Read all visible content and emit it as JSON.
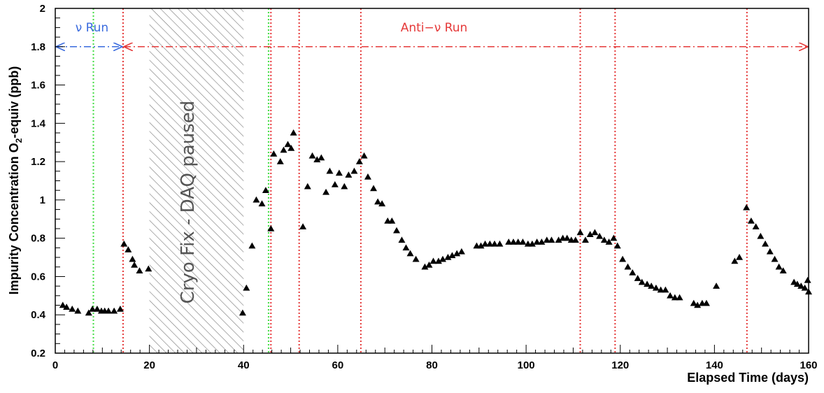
{
  "chart_data": {
    "type": "scatter",
    "xlabel": "Elapsed Time (days)",
    "ylabel_main": "Impurity Concentration O",
    "ylabel_sub": "2",
    "ylabel_tail": "-equiv (ppb)",
    "xlim": [
      0,
      160
    ],
    "ylim": [
      0.2,
      2
    ],
    "x_ticks": [
      0,
      20,
      40,
      60,
      80,
      100,
      120,
      140,
      160
    ],
    "x_tick_labels": [
      "0",
      "20",
      "40",
      "60",
      "80",
      "100",
      "120",
      "140",
      "160"
    ],
    "y_ticks": [
      0.2,
      0.4,
      0.6,
      0.8,
      1.0,
      1.2,
      1.4,
      1.6,
      1.8,
      2.0
    ],
    "y_tick_labels": [
      "0.2",
      "0.4",
      "0.6",
      "0.8",
      "1",
      "1.2",
      "1.4",
      "1.6",
      "1.8",
      "2"
    ],
    "grid": false,
    "marker": "triangle",
    "marker_color": "#000000",
    "points": [
      [
        1.6,
        0.45
      ],
      [
        2.4,
        0.44
      ],
      [
        3.6,
        0.43
      ],
      [
        4.8,
        0.42
      ],
      [
        7.1,
        0.41
      ],
      [
        7.9,
        0.43
      ],
      [
        8.9,
        0.43
      ],
      [
        9.8,
        0.42
      ],
      [
        10.5,
        0.42
      ],
      [
        11.3,
        0.42
      ],
      [
        12.5,
        0.42
      ],
      [
        13.8,
        0.43
      ],
      [
        14.6,
        0.77
      ],
      [
        15.5,
        0.74
      ],
      [
        16.4,
        0.69
      ],
      [
        16.8,
        0.66
      ],
      [
        17.9,
        0.63
      ],
      [
        19.8,
        0.64
      ],
      [
        39.8,
        0.41
      ],
      [
        40.6,
        0.54
      ],
      [
        41.8,
        0.76
      ],
      [
        42.7,
        1.0
      ],
      [
        43.9,
        0.98
      ],
      [
        44.7,
        1.05
      ],
      [
        45.8,
        0.85
      ],
      [
        46.4,
        1.24
      ],
      [
        47.8,
        1.2
      ],
      [
        48.5,
        1.26
      ],
      [
        49.4,
        1.29
      ],
      [
        50.1,
        1.27
      ],
      [
        50.6,
        1.35
      ],
      [
        52.6,
        0.86
      ],
      [
        53.6,
        1.07
      ],
      [
        54.6,
        1.23
      ],
      [
        55.6,
        1.21
      ],
      [
        56.5,
        1.22
      ],
      [
        57.5,
        1.04
      ],
      [
        58.3,
        1.15
      ],
      [
        59.4,
        1.08
      ],
      [
        60.3,
        1.14
      ],
      [
        61.4,
        1.07
      ],
      [
        62.3,
        1.13
      ],
      [
        63.5,
        1.15
      ],
      [
        64.6,
        1.2
      ],
      [
        65.6,
        1.23
      ],
      [
        66.4,
        1.12
      ],
      [
        67.6,
        1.06
      ],
      [
        68.5,
        0.99
      ],
      [
        69.4,
        0.98
      ],
      [
        70.6,
        0.89
      ],
      [
        71.5,
        0.89
      ],
      [
        72.5,
        0.84
      ],
      [
        73.6,
        0.79
      ],
      [
        74.5,
        0.75
      ],
      [
        75.4,
        0.72
      ],
      [
        76.6,
        0.69
      ],
      [
        78.5,
        0.65
      ],
      [
        79.4,
        0.66
      ],
      [
        80.3,
        0.68
      ],
      [
        81.4,
        0.68
      ],
      [
        82.3,
        0.69
      ],
      [
        83.4,
        0.7
      ],
      [
        84.3,
        0.71
      ],
      [
        85.3,
        0.72
      ],
      [
        86.3,
        0.73
      ],
      [
        89.5,
        0.76
      ],
      [
        90.4,
        0.76
      ],
      [
        91.3,
        0.77
      ],
      [
        92.3,
        0.77
      ],
      [
        93.3,
        0.77
      ],
      [
        94.4,
        0.77
      ],
      [
        96.3,
        0.78
      ],
      [
        97.3,
        0.78
      ],
      [
        98.3,
        0.78
      ],
      [
        99.3,
        0.78
      ],
      [
        100.4,
        0.77
      ],
      [
        101.3,
        0.77
      ],
      [
        102.3,
        0.78
      ],
      [
        103.3,
        0.78
      ],
      [
        104.4,
        0.79
      ],
      [
        105.4,
        0.79
      ],
      [
        106.9,
        0.79
      ],
      [
        107.8,
        0.8
      ],
      [
        108.7,
        0.8
      ],
      [
        109.6,
        0.79
      ],
      [
        110.5,
        0.79
      ],
      [
        111.5,
        0.83
      ],
      [
        112.6,
        0.79
      ],
      [
        113.6,
        0.82
      ],
      [
        114.6,
        0.83
      ],
      [
        115.6,
        0.81
      ],
      [
        116.6,
        0.79
      ],
      [
        117.6,
        0.78
      ],
      [
        118.6,
        0.8
      ],
      [
        119.4,
        0.76
      ],
      [
        120.5,
        0.69
      ],
      [
        121.6,
        0.65
      ],
      [
        122.6,
        0.62
      ],
      [
        123.7,
        0.59
      ],
      [
        124.6,
        0.57
      ],
      [
        125.7,
        0.56
      ],
      [
        126.6,
        0.55
      ],
      [
        127.6,
        0.54
      ],
      [
        128.6,
        0.53
      ],
      [
        129.6,
        0.53
      ],
      [
        130.6,
        0.5
      ],
      [
        131.6,
        0.49
      ],
      [
        132.6,
        0.49
      ],
      [
        135.6,
        0.46
      ],
      [
        136.4,
        0.45
      ],
      [
        137.4,
        0.46
      ],
      [
        138.3,
        0.46
      ],
      [
        140.4,
        0.55
      ],
      [
        144.3,
        0.68
      ],
      [
        145.3,
        0.7
      ],
      [
        146.8,
        0.96
      ],
      [
        147.8,
        0.89
      ],
      [
        148.8,
        0.86
      ],
      [
        149.8,
        0.81
      ],
      [
        150.8,
        0.77
      ],
      [
        151.8,
        0.73
      ],
      [
        152.8,
        0.69
      ],
      [
        153.7,
        0.65
      ],
      [
        154.6,
        0.63
      ],
      [
        156.9,
        0.57
      ],
      [
        157.6,
        0.56
      ],
      [
        158.4,
        0.55
      ],
      [
        159.2,
        0.54
      ],
      [
        159.8,
        0.58
      ],
      [
        160.0,
        0.52
      ]
    ],
    "vertical_lines": [
      {
        "x": 8.1,
        "color": "#44dd44"
      },
      {
        "x": 45.3,
        "color": "#44dd44"
      },
      {
        "x": 14.4,
        "color": "#e53939"
      },
      {
        "x": 45.8,
        "color": "#e53939"
      },
      {
        "x": 51.8,
        "color": "#e53939"
      },
      {
        "x": 64.9,
        "color": "#e53939"
      },
      {
        "x": 111.5,
        "color": "#e53939"
      },
      {
        "x": 118.9,
        "color": "#e53939"
      },
      {
        "x": 146.9,
        "color": "#e53939"
      }
    ],
    "hatched_band": {
      "x_start": 20,
      "x_end": 40,
      "label": "Cryo Fix - DAQ paused",
      "color": "#666666"
    },
    "runs": [
      {
        "label": "ν Run",
        "x_start": 0,
        "x_end": 14.4,
        "y": 1.8,
        "color": "#3a6bde"
      },
      {
        "label": "Anti−ν Run",
        "x_start": 14.4,
        "x_end": 160,
        "y": 1.8,
        "color": "#e53939"
      }
    ]
  }
}
